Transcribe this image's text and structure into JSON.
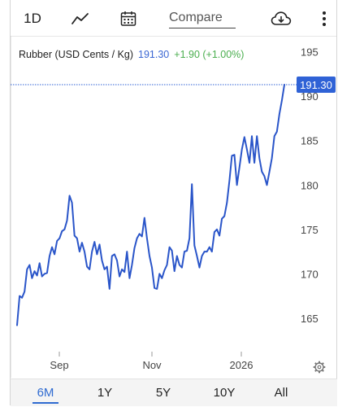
{
  "toolbar": {
    "interval_label": "1D",
    "compare_placeholder": "Compare"
  },
  "header": {
    "instrument": "Rubber (USD Cents / Kg)",
    "price": "191.30",
    "change": "+1.90 (+1.00%)"
  },
  "colors": {
    "line": "#2a55c9",
    "price": "#3b67d3",
    "change": "#4caf50",
    "price_tag": "#2f62d6"
  },
  "ranges": [
    "6M",
    "1Y",
    "5Y",
    "10Y",
    "All"
  ],
  "active_range": "6M",
  "chart_data": {
    "type": "line",
    "title": "",
    "xlabel": "",
    "ylabel": "",
    "x_ticks": [
      "Sep",
      "Nov",
      "2026"
    ],
    "y_ticks": [
      165,
      170,
      175,
      180,
      185,
      190,
      195
    ],
    "ylim": [
      160.5,
      196.8
    ],
    "last_value_label": "191.30",
    "last_value": 191.3,
    "grid": false,
    "series": [
      {
        "values": [
          164.2,
          167.5,
          167.3,
          168.0,
          170.5,
          171.0,
          169.5,
          170.3,
          169.8,
          171.2,
          169.7,
          170.0,
          170.1,
          172.0,
          173.0,
          172.2,
          173.7,
          174.0,
          174.8,
          175.0,
          176.0,
          178.8,
          178.0,
          174.3,
          174.0,
          172.5,
          173.5,
          172.5,
          170.8,
          170.5,
          172.5,
          173.6,
          172.2,
          173.3,
          171.5,
          170.5,
          170.8,
          168.3,
          172.0,
          172.2,
          171.5,
          169.7,
          170.5,
          170.2,
          172.5,
          169.5,
          171.0,
          172.9,
          174.0,
          174.5,
          174.2,
          176.3,
          174.0,
          172.0,
          170.7,
          168.4,
          168.3,
          170.0,
          169.5,
          170.4,
          171.0,
          173.0,
          172.6,
          170.3,
          172.0,
          171.0,
          170.7,
          172.5,
          172.6,
          174.0,
          180.1,
          173.2,
          172.0,
          170.7,
          172.0,
          172.5,
          172.5,
          173.0,
          172.5,
          174.7,
          175.0,
          174.3,
          176.2,
          176.5,
          178.0,
          180.5,
          183.3,
          183.4,
          180.0,
          182.0,
          184.0,
          185.4,
          184.0,
          182.5,
          185.5,
          182.5,
          185.5,
          183.0,
          181.5,
          181.0,
          180.0,
          181.5,
          183.0,
          185.5,
          186.0,
          188.0,
          189.5,
          191.3
        ]
      }
    ]
  }
}
